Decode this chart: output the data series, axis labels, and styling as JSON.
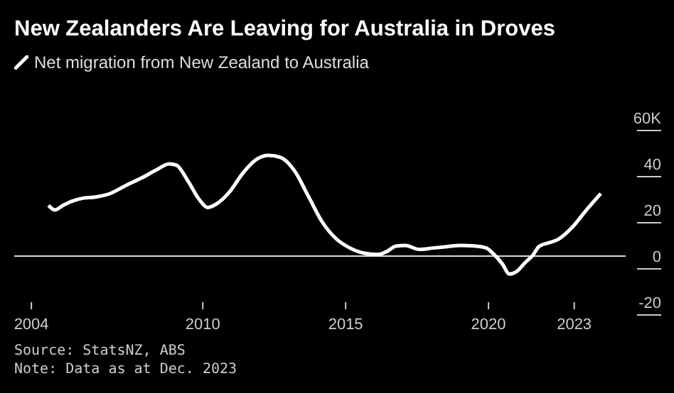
{
  "chart_data": {
    "type": "line",
    "title": "New Zealanders Are Leaving for Australia in Droves",
    "x": [
      2004.6,
      2004.82,
      2005.11,
      2005.44,
      2005.84,
      2006.25,
      2006.73,
      2007.38,
      2007.86,
      2008.35,
      2008.83,
      2009.08,
      2009.48,
      2009.89,
      2010.16,
      2010.45,
      2010.94,
      2011.42,
      2011.91,
      2012.31,
      2012.72,
      2013.2,
      2013.69,
      2014.17,
      2014.66,
      2015.15,
      2015.63,
      2016.12,
      2016.44,
      2016.76,
      2017.09,
      2017.57,
      2018.06,
      2018.54,
      2019.03,
      2019.51,
      2019.92,
      2020.16,
      2020.49,
      2020.73,
      2020.97,
      2021.3,
      2021.54,
      2021.78,
      2022.1,
      2022.43,
      2022.91,
      2023.4,
      2023.93
    ],
    "series": [
      {
        "name": "Net migration from New Zealand to Australia",
        "color": "#ffffff",
        "values": [
          22,
          20,
          22,
          23.9,
          25.2,
          25.6,
          27,
          31.1,
          33.9,
          37.2,
          40,
          39.4,
          32.6,
          24.3,
          21.1,
          22.4,
          27.9,
          36.3,
          42.2,
          43.7,
          42.8,
          37.2,
          26.1,
          15,
          7.6,
          3.5,
          1.3,
          0.7,
          2,
          4.3,
          4.6,
          2.9,
          3.5,
          4.1,
          4.6,
          4.4,
          3.5,
          1.1,
          -3.5,
          -7.8,
          -6.8,
          -2.6,
          0.2,
          4.3,
          5.7,
          7.2,
          12.2,
          19.6,
          27.1
        ]
      }
    ],
    "xlim": [
      2003.4,
      2024.8
    ],
    "xticks": [
      2004,
      2010,
      2015,
      2020,
      2023
    ],
    "ylim": [
      -20,
      60
    ],
    "yticks": [
      -20,
      0,
      20,
      40,
      {
        "value": 60,
        "label": "60K"
      }
    ],
    "ref_lines": [
      {
        "axis": "y",
        "value": 0,
        "color": "#d9d9d9"
      }
    ],
    "grid": false,
    "legend": "top left",
    "marker": "none",
    "line_style": "solid",
    "annotations": [
      "Source: StatsNZ, ABS",
      "Note: Data as at Dec. 2023"
    ]
  }
}
